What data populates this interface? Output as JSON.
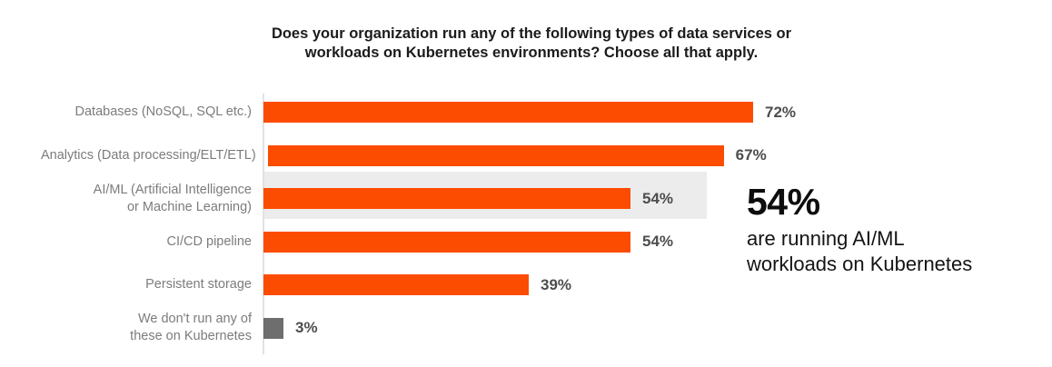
{
  "title": {
    "lines": [
      "Does your organization run any of the following types of data services or",
      "workloads on Kubernetes environments? Choose all that apply."
    ]
  },
  "chart_data": {
    "type": "bar",
    "orientation": "horizontal",
    "title": "Does your organization run any of the following types of data services or workloads on Kubernetes environments? Choose all that apply.",
    "categories": [
      "Databases (NoSQL, SQL etc.)",
      "Analytics (Data processing/ELT/ETL)",
      "AI/ML (Artificial Intelligence or Machine Learning)",
      "CI/CD pipeline",
      "Persistent storage",
      "We don't run any of these on Kubernetes"
    ],
    "category_lines": [
      [
        "Databases (NoSQL, SQL etc.)"
      ],
      [
        "Analytics (Data processing/ELT/ETL)"
      ],
      [
        "AI/ML (Artificial Intelligence",
        "or Machine Learning)"
      ],
      [
        "CI/CD pipeline"
      ],
      [
        "Persistent storage"
      ],
      [
        "We don't run any of",
        "these on Kubernetes"
      ]
    ],
    "values": [
      72,
      67,
      54,
      54,
      39,
      3
    ],
    "value_labels": [
      "72%",
      "67%",
      "54%",
      "54%",
      "39%",
      "3%"
    ],
    "xlim": [
      0,
      100
    ],
    "grid": false,
    "legend": false,
    "bar_colors": [
      "#FC4C02",
      "#FC4C02",
      "#FC4C02",
      "#FC4C02",
      "#FC4C02",
      "#6E6E6E"
    ],
    "highlighted_category_index": 2,
    "highlight_color": "#ECECEC",
    "axis_color": "#E2E2E2"
  },
  "annotation": {
    "headline": "54%",
    "lines": [
      "are running AI/ML",
      "workloads on Kubernetes"
    ]
  },
  "colors": {
    "accent_orange": "#FC4C02",
    "neutral_gray_bar": "#6E6E6E",
    "highlight_band": "#ECECEC",
    "title_text": "#1B1B1B",
    "label_text": "#7C7C7C",
    "value_text": "#4D4D4D",
    "annotation_text": "#0D0D0D"
  }
}
